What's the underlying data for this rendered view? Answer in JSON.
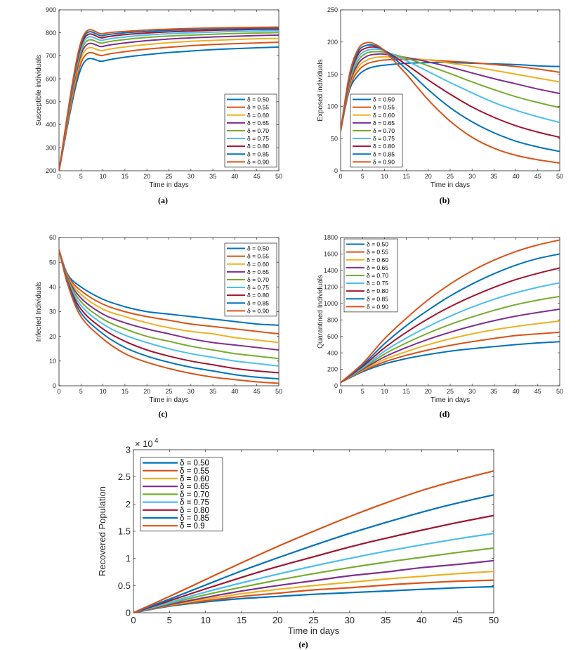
{
  "palette": [
    "#0072BD",
    "#D95319",
    "#EDB120",
    "#7E2F8E",
    "#77AC30",
    "#4DBEEE",
    "#A2142F",
    "#0072BD",
    "#D95319"
  ],
  "chart_data": [
    {
      "panel": "a",
      "caption": "(a)",
      "type": "line",
      "xlabel": "Time in days",
      "ylabel": "Susceptible individuals",
      "xlim": [
        0,
        50
      ],
      "ylim": [
        200,
        900
      ],
      "xticks": [
        "0",
        "5",
        "10",
        "15",
        "20",
        "25",
        "30",
        "35",
        "40",
        "45",
        "50"
      ],
      "yticks": [
        "200",
        "300",
        "400",
        "500",
        "600",
        "700",
        "800",
        "900"
      ],
      "legend_position": "right",
      "x": [
        0,
        5,
        10,
        15,
        20,
        25,
        30,
        35,
        40,
        45,
        50
      ],
      "series": [
        {
          "name": "δ = 0.50",
          "values": [
            200,
            645,
            677,
            694,
            705,
            714,
            721,
            727,
            731,
            735,
            738
          ]
        },
        {
          "name": "δ = 0.55",
          "values": [
            200,
            668,
            702,
            718,
            729,
            737,
            744,
            749,
            753,
            756,
            759
          ]
        },
        {
          "name": "δ = 0.60",
          "values": [
            200,
            688,
            723,
            739,
            749,
            757,
            763,
            767,
            771,
            774,
            776
          ]
        },
        {
          "name": "δ = 0.65",
          "values": [
            200,
            705,
            741,
            756,
            766,
            773,
            778,
            782,
            785,
            788,
            790
          ]
        },
        {
          "name": "δ = 0.70",
          "values": [
            200,
            719,
            756,
            771,
            780,
            786,
            790,
            794,
            797,
            799,
            801
          ]
        },
        {
          "name": "δ = 0.75",
          "values": [
            200,
            732,
            768,
            782,
            790,
            796,
            800,
            803,
            806,
            808,
            809
          ]
        },
        {
          "name": "δ = 0.80",
          "values": [
            200,
            743,
            779,
            792,
            799,
            804,
            808,
            811,
            813,
            815,
            816
          ]
        },
        {
          "name": "δ = 0.85",
          "values": [
            200,
            752,
            788,
            800,
            806,
            811,
            814,
            817,
            819,
            820,
            821
          ]
        },
        {
          "name": "δ = 0.90",
          "values": [
            200,
            760,
            796,
            806,
            812,
            816,
            819,
            821,
            823,
            824,
            825
          ]
        }
      ]
    },
    {
      "panel": "b",
      "caption": "(b)",
      "type": "line",
      "xlabel": "Time in days",
      "ylabel": "Exposed individuals",
      "xlim": [
        0,
        50
      ],
      "ylim": [
        0,
        250
      ],
      "xticks": [
        "0",
        "5",
        "10",
        "15",
        "20",
        "25",
        "30",
        "35",
        "40",
        "45",
        "50"
      ],
      "yticks": [
        "0",
        "50",
        "100",
        "150",
        "200",
        "250"
      ],
      "legend_position": "left",
      "x": [
        0,
        2,
        4,
        6,
        8,
        10,
        15,
        20,
        25,
        30,
        35,
        40,
        45,
        50
      ],
      "series": [
        {
          "name": "δ = 0.50",
          "values": [
            62,
            125,
            148,
            158,
            162,
            164,
            167,
            168,
            168,
            167,
            166,
            165,
            163,
            162
          ]
        },
        {
          "name": "δ = 0.55",
          "values": [
            62,
            128,
            155,
            166,
            170,
            172,
            173,
            172,
            170,
            168,
            165,
            162,
            158,
            153
          ]
        },
        {
          "name": "δ = 0.60",
          "values": [
            62,
            131,
            161,
            172,
            176,
            177,
            175,
            172,
            167,
            162,
            156,
            150,
            144,
            138
          ]
        },
        {
          "name": "δ = 0.65",
          "values": [
            62,
            134,
            166,
            178,
            181,
            181,
            176,
            169,
            161,
            152,
            143,
            135,
            127,
            120
          ]
        },
        {
          "name": "δ = 0.70",
          "values": [
            62,
            137,
            171,
            183,
            185,
            184,
            175,
            163,
            151,
            138,
            126,
            115,
            106,
            98
          ]
        },
        {
          "name": "δ = 0.75",
          "values": [
            62,
            140,
            176,
            187,
            189,
            186,
            171,
            154,
            137,
            121,
            106,
            94,
            84,
            75
          ]
        },
        {
          "name": "δ = 0.80",
          "values": [
            62,
            143,
            181,
            191,
            192,
            187,
            165,
            141,
            119,
            99,
            83,
            70,
            60,
            52
          ]
        },
        {
          "name": "δ = 0.85",
          "values": [
            62,
            146,
            185,
            195,
            194,
            187,
            158,
            126,
            98,
            76,
            59,
            46,
            37,
            30
          ]
        },
        {
          "name": "δ = 0.90",
          "values": [
            62,
            149,
            189,
            199,
            196,
            186,
            150,
            110,
            77,
            52,
            35,
            24,
            17,
            12
          ]
        }
      ]
    },
    {
      "panel": "c",
      "caption": "(c)",
      "type": "line",
      "xlabel": "Time in days",
      "ylabel": "Infected Individuals",
      "xlim": [
        0,
        50
      ],
      "ylim": [
        0,
        60
      ],
      "xticks": [
        "0",
        "5",
        "10",
        "15",
        "20",
        "25",
        "30",
        "35",
        "40",
        "45",
        "50"
      ],
      "yticks": [
        "0",
        "10",
        "20",
        "30",
        "40",
        "50",
        "60"
      ],
      "legend_position": "right",
      "x": [
        0,
        2,
        5,
        10,
        15,
        20,
        25,
        30,
        35,
        40,
        45,
        50
      ],
      "series": [
        {
          "name": "δ = 0.50",
          "values": [
            55,
            45,
            40,
            35,
            32,
            30,
            29,
            28,
            27,
            26,
            25,
            24.5
          ]
        },
        {
          "name": "δ = 0.55",
          "values": [
            55,
            44.5,
            38.5,
            33,
            30,
            28,
            26.5,
            25,
            24,
            23,
            22,
            21
          ]
        },
        {
          "name": "δ = 0.60",
          "values": [
            55,
            44,
            37,
            31,
            28,
            25.5,
            23.5,
            22,
            21,
            19.5,
            18.5,
            17.5
          ]
        },
        {
          "name": "δ = 0.65",
          "values": [
            55,
            43.5,
            35.5,
            29,
            25.5,
            23,
            21,
            19,
            17.5,
            16.5,
            15.5,
            14.5
          ]
        },
        {
          "name": "δ = 0.70",
          "values": [
            55,
            43,
            34,
            27,
            23,
            20,
            18,
            16,
            14.5,
            13,
            12,
            11
          ]
        },
        {
          "name": "δ = 0.75",
          "values": [
            55,
            42.5,
            32.5,
            25,
            20.5,
            17.5,
            15,
            13,
            11.5,
            10,
            9,
            8
          ]
        },
        {
          "name": "δ = 0.80",
          "values": [
            55,
            42,
            31,
            23,
            18,
            14.5,
            12,
            10,
            8.5,
            7,
            6,
            5.3
          ]
        },
        {
          "name": "δ = 0.85",
          "values": [
            55,
            41.5,
            29.5,
            21,
            15.5,
            12,
            9.5,
            7.5,
            6,
            4.5,
            3.5,
            2.8
          ]
        },
        {
          "name": "δ = 0.90",
          "values": [
            55,
            41,
            28,
            19,
            13,
            9.5,
            7,
            5,
            3.5,
            2.5,
            1.6,
            1
          ]
        }
      ]
    },
    {
      "panel": "d",
      "caption": "(d)",
      "type": "line",
      "xlabel": "Time in days",
      "ylabel": "Quarantined Individuals",
      "xlim": [
        0,
        50
      ],
      "ylim": [
        0,
        1800
      ],
      "xticks": [
        "0",
        "5",
        "10",
        "15",
        "20",
        "25",
        "30",
        "35",
        "40",
        "45",
        "50"
      ],
      "yticks": [
        "0",
        "200",
        "400",
        "600",
        "800",
        "1000",
        "1200",
        "1400",
        "1600",
        "1800"
      ],
      "legend_position": "left",
      "x": [
        0,
        5,
        10,
        15,
        20,
        25,
        30,
        35,
        40,
        45,
        50
      ],
      "series": [
        {
          "name": "δ = 0.50",
          "values": [
            40,
            170,
            265,
            330,
            380,
            420,
            450,
            475,
            500,
            520,
            535
          ]
        },
        {
          "name": "δ = 0.55",
          "values": [
            40,
            180,
            290,
            370,
            435,
            490,
            535,
            575,
            610,
            630,
            650
          ]
        },
        {
          "name": "δ = 0.60",
          "values": [
            40,
            190,
            320,
            415,
            500,
            570,
            630,
            680,
            720,
            755,
            785
          ]
        },
        {
          "name": "δ = 0.65",
          "values": [
            40,
            200,
            350,
            465,
            565,
            650,
            725,
            790,
            845,
            890,
            930
          ]
        },
        {
          "name": "δ = 0.70",
          "values": [
            40,
            210,
            385,
            520,
            640,
            745,
            835,
            915,
            985,
            1040,
            1085
          ]
        },
        {
          "name": "δ = 0.75",
          "values": [
            40,
            220,
            420,
            580,
            720,
            845,
            955,
            1050,
            1130,
            1195,
            1250
          ]
        },
        {
          "name": "δ = 0.80",
          "values": [
            40,
            235,
            460,
            650,
            815,
            960,
            1085,
            1195,
            1290,
            1365,
            1430
          ]
        },
        {
          "name": "δ = 0.85",
          "values": [
            40,
            250,
            510,
            730,
            920,
            1090,
            1235,
            1360,
            1465,
            1545,
            1600
          ]
        },
        {
          "name": "δ = 0.90",
          "values": [
            40,
            270,
            570,
            820,
            1045,
            1235,
            1395,
            1525,
            1630,
            1710,
            1770
          ]
        }
      ]
    },
    {
      "panel": "e",
      "caption": "(e)",
      "type": "line",
      "xlabel": "Time in days",
      "ylabel": "Recovered  Population",
      "exponent_label": "× 10",
      "exponent_power": "4",
      "xlim": [
        0,
        50
      ],
      "ylim": [
        0,
        3
      ],
      "xticks": [
        "0",
        "5",
        "10",
        "15",
        "20",
        "25",
        "30",
        "35",
        "40",
        "45",
        "50"
      ],
      "yticks": [
        "0",
        "0.5",
        "1",
        "1.5",
        "2",
        "2.5",
        "3"
      ],
      "legend_position": "left",
      "x": [
        0,
        5,
        10,
        15,
        20,
        25,
        30,
        35,
        40,
        45,
        50
      ],
      "series": [
        {
          "name": "δ = 0.50",
          "values": [
            0,
            0.12,
            0.2,
            0.26,
            0.3,
            0.34,
            0.37,
            0.4,
            0.43,
            0.46,
            0.48
          ]
        },
        {
          "name": "δ = 0.55",
          "values": [
            0,
            0.13,
            0.22,
            0.3,
            0.36,
            0.42,
            0.46,
            0.51,
            0.55,
            0.58,
            0.6
          ]
        },
        {
          "name": "δ = 0.60",
          "values": [
            0,
            0.14,
            0.25,
            0.35,
            0.43,
            0.5,
            0.56,
            0.62,
            0.67,
            0.72,
            0.76
          ]
        },
        {
          "name": "δ = 0.65",
          "values": [
            0,
            0.15,
            0.28,
            0.4,
            0.5,
            0.59,
            0.68,
            0.75,
            0.83,
            0.89,
            0.96
          ]
        },
        {
          "name": "δ = 0.70",
          "values": [
            0,
            0.17,
            0.33,
            0.47,
            0.6,
            0.72,
            0.83,
            0.93,
            1.02,
            1.11,
            1.19
          ]
        },
        {
          "name": "δ = 0.75",
          "values": [
            0,
            0.19,
            0.38,
            0.55,
            0.71,
            0.86,
            1.0,
            1.13,
            1.25,
            1.36,
            1.46
          ]
        },
        {
          "name": "δ = 0.80",
          "values": [
            0,
            0.22,
            0.44,
            0.65,
            0.85,
            1.03,
            1.21,
            1.37,
            1.52,
            1.66,
            1.79
          ]
        },
        {
          "name": "δ = 0.85",
          "values": [
            0,
            0.25,
            0.51,
            0.77,
            1.01,
            1.24,
            1.46,
            1.66,
            1.85,
            2.02,
            2.17
          ]
        },
        {
          "name": "δ = 0.9",
          "values": [
            0,
            0.3,
            0.61,
            0.92,
            1.22,
            1.5,
            1.77,
            2.02,
            2.25,
            2.44,
            2.61
          ]
        }
      ]
    }
  ]
}
